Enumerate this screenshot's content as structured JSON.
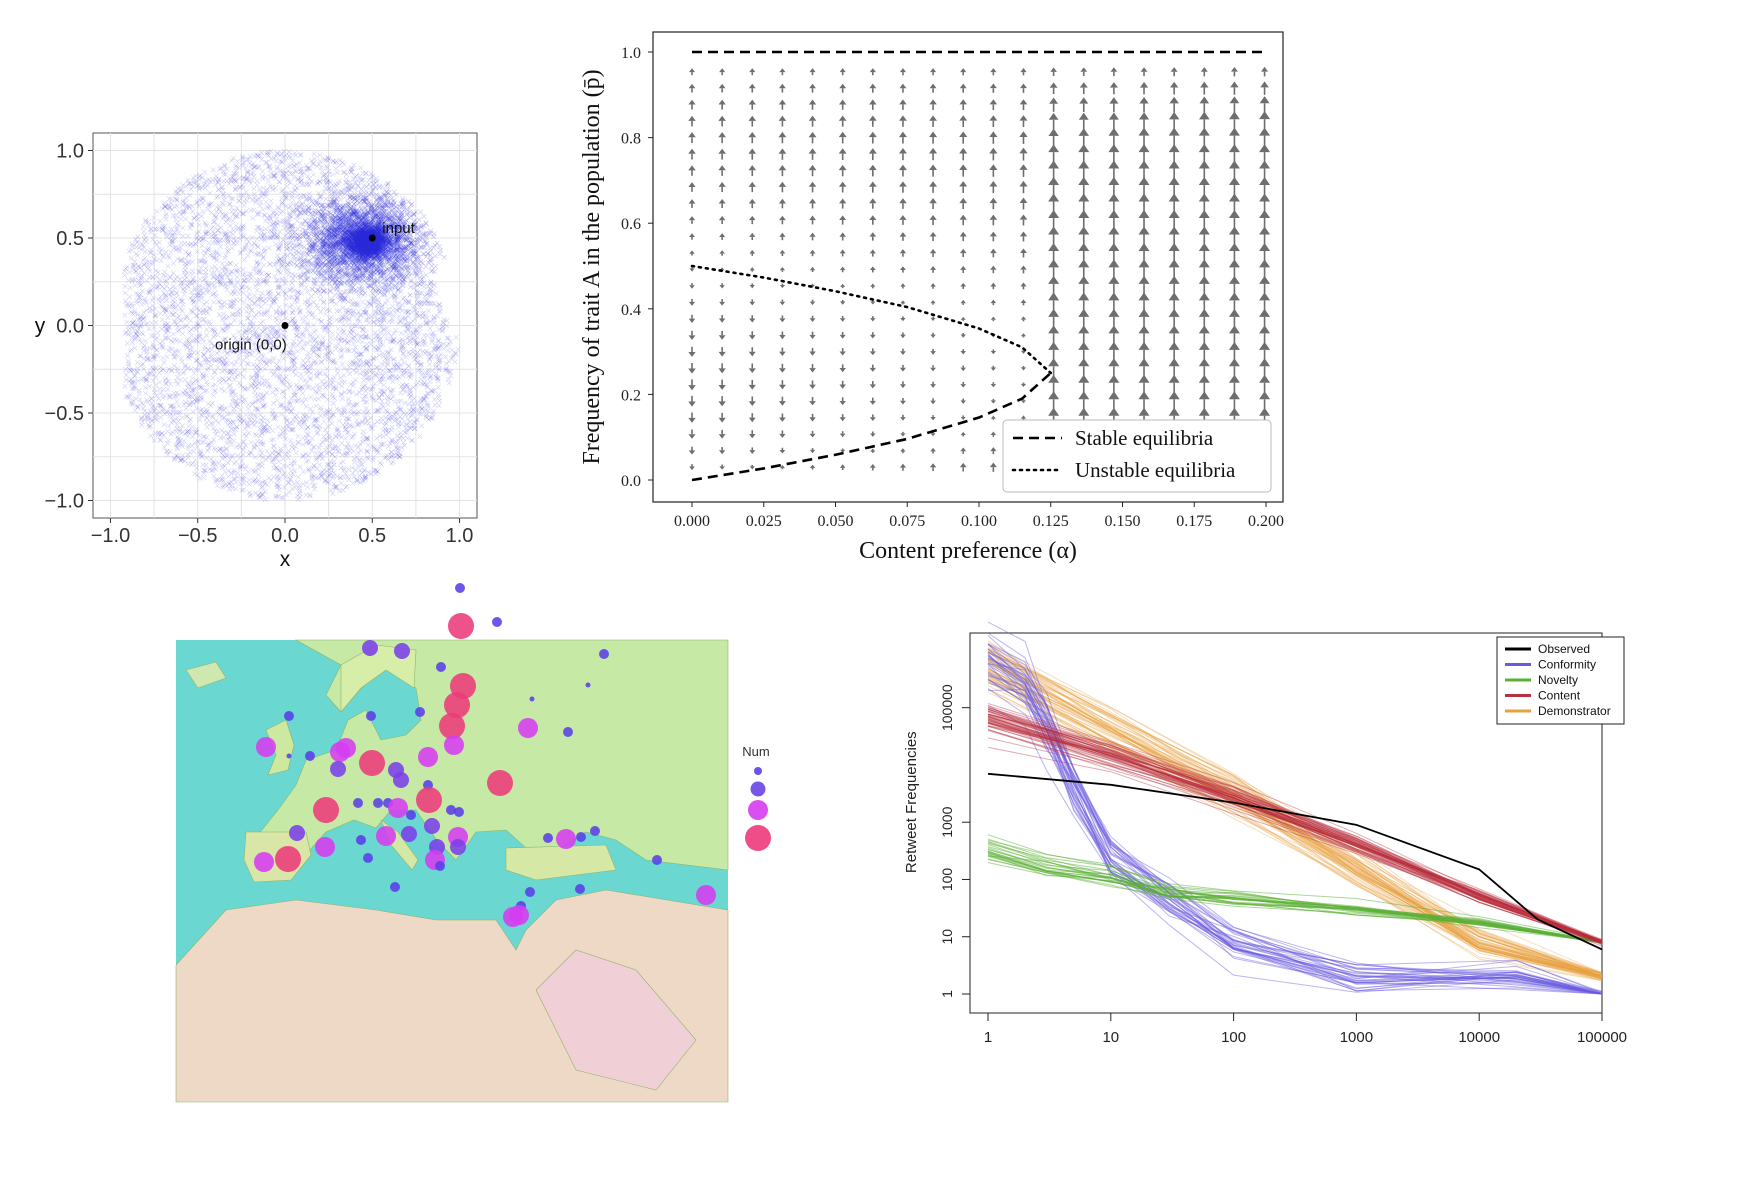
{
  "chart_data": [
    {
      "type": "scatter",
      "xlabel": "x",
      "ylabel": "y",
      "xlim": [
        -1.1,
        1.1
      ],
      "ylim": [
        -1.1,
        1.1
      ],
      "x_ticks": [
        -1.0,
        -0.5,
        0.0,
        0.5,
        1.0
      ],
      "y_ticks": [
        -1.0,
        -0.5,
        0.0,
        0.5,
        1.0
      ],
      "x_tick_labels": [
        "−1.0",
        "−0.5",
        "0.0",
        "0.5",
        "1.0"
      ],
      "y_tick_labels": [
        "−1.0",
        "−0.5",
        "0.0",
        "0.5",
        "1.0"
      ],
      "grid": true,
      "points_color": "#2b2bd8",
      "cloud_center": [
        0.45,
        0.48
      ],
      "annotations": [
        {
          "label": "input",
          "x": 0.5,
          "y": 0.5
        },
        {
          "label": "origin (0,0)",
          "x": 0.0,
          "y": 0.0
        }
      ]
    },
    {
      "type": "line",
      "xlabel": "Content preference (α)",
      "ylabel": "Frequency of trait A in the population (p̄)",
      "xlim": [
        0.0,
        0.2
      ],
      "ylim": [
        0.0,
        1.0
      ],
      "x_ticks": [
        0.0,
        0.025,
        0.05,
        0.075,
        0.1,
        0.125,
        0.15,
        0.175,
        0.2
      ],
      "x_tick_labels": [
        "0.000",
        "0.025",
        "0.050",
        "0.075",
        "0.100",
        "0.125",
        "0.150",
        "0.175",
        "0.200"
      ],
      "y_ticks": [
        0.0,
        0.2,
        0.4,
        0.6,
        0.8,
        1.0
      ],
      "y_tick_labels": [
        "0.0",
        "0.2",
        "0.4",
        "0.6",
        "0.8",
        "1.0"
      ],
      "series": [
        {
          "name": "Stable equilibria",
          "style": "dashed",
          "x": [
            0.0,
            0.2
          ],
          "y": [
            1.0,
            1.0
          ]
        },
        {
          "name": "Stable equilibria",
          "style": "dashed",
          "x": [
            0.0,
            0.025,
            0.05,
            0.075,
            0.1,
            0.115,
            0.125
          ],
          "y": [
            0.0,
            0.027,
            0.059,
            0.096,
            0.146,
            0.19,
            0.25
          ]
        },
        {
          "name": "Unstable equilibria",
          "style": "dotted",
          "x": [
            0.0,
            0.025,
            0.05,
            0.075,
            0.1,
            0.115,
            0.125
          ],
          "y": [
            0.5,
            0.473,
            0.441,
            0.404,
            0.354,
            0.31,
            0.25
          ]
        }
      ],
      "vector_field": {
        "x_start": 0.0,
        "x_step": 0.0105,
        "x_count": 20,
        "y_start": 0.03,
        "y_step": 0.0385,
        "y_count": 25,
        "color": "#6e6e6e"
      },
      "legend": {
        "position": "bottom-right",
        "entries": [
          "Stable equilibria",
          "Unstable equilibria"
        ]
      }
    },
    {
      "type": "scatter",
      "subtype": "map-bubbles",
      "legend_title": "Num",
      "legend_sizes": [
        1,
        2,
        3,
        4
      ],
      "legend_colors": [
        "#5a3fe8",
        "#6a44e8",
        "#d63cf0",
        "#ec3a7a"
      ],
      "background": "map of Europe, North Africa and the Middle East"
    },
    {
      "type": "line",
      "ylabel": "Retweet Frequencies",
      "xscale": "log",
      "yscale": "log",
      "xlim": [
        1,
        100000
      ],
      "ylim": [
        1,
        1000000
      ],
      "x_ticks": [
        1,
        10,
        100,
        1000,
        10000,
        100000
      ],
      "x_tick_labels": [
        "1",
        "10",
        "100",
        "1000",
        "10000",
        "100000"
      ],
      "y_ticks": [
        1,
        10,
        100,
        1000,
        100000
      ],
      "y_tick_labels": [
        "1",
        "10",
        "100",
        "1000",
        "100000"
      ],
      "series": [
        {
          "name": "Observed",
          "color": "#000000",
          "x": [
            1,
            10,
            100,
            1000,
            10000,
            30000,
            100000
          ],
          "y": [
            7000,
            4500,
            2200,
            900,
            150,
            20,
            6
          ]
        },
        {
          "name": "Conformity",
          "color": "#6a5ae0",
          "x": [
            1,
            2,
            3,
            5,
            10,
            30,
            100,
            1000,
            20000,
            100000
          ],
          "y": [
            800000,
            300000,
            60000,
            5000,
            300,
            50,
            8,
            2,
            2,
            1
          ]
        },
        {
          "name": "Novelty",
          "color": "#5ab034",
          "x": [
            1,
            3,
            10,
            30,
            100,
            1000,
            10000,
            100000
          ],
          "y": [
            300,
            150,
            100,
            55,
            45,
            30,
            17,
            8
          ]
        },
        {
          "name": "Content",
          "color": "#b8303f",
          "x": [
            1,
            10,
            100,
            1000,
            10000,
            100000
          ],
          "y": [
            60000,
            14000,
            2600,
            400,
            50,
            8
          ]
        },
        {
          "name": "Demonstrator",
          "color": "#e8a040",
          "x": [
            1,
            10,
            100,
            1000,
            10000,
            100000
          ],
          "y": [
            500000,
            40000,
            3000,
            150,
            8,
            2
          ]
        }
      ],
      "legend": {
        "position": "top-right",
        "entries": [
          "Observed",
          "Conformity",
          "Novelty",
          "Content",
          "Demonstrator"
        ]
      }
    }
  ]
}
